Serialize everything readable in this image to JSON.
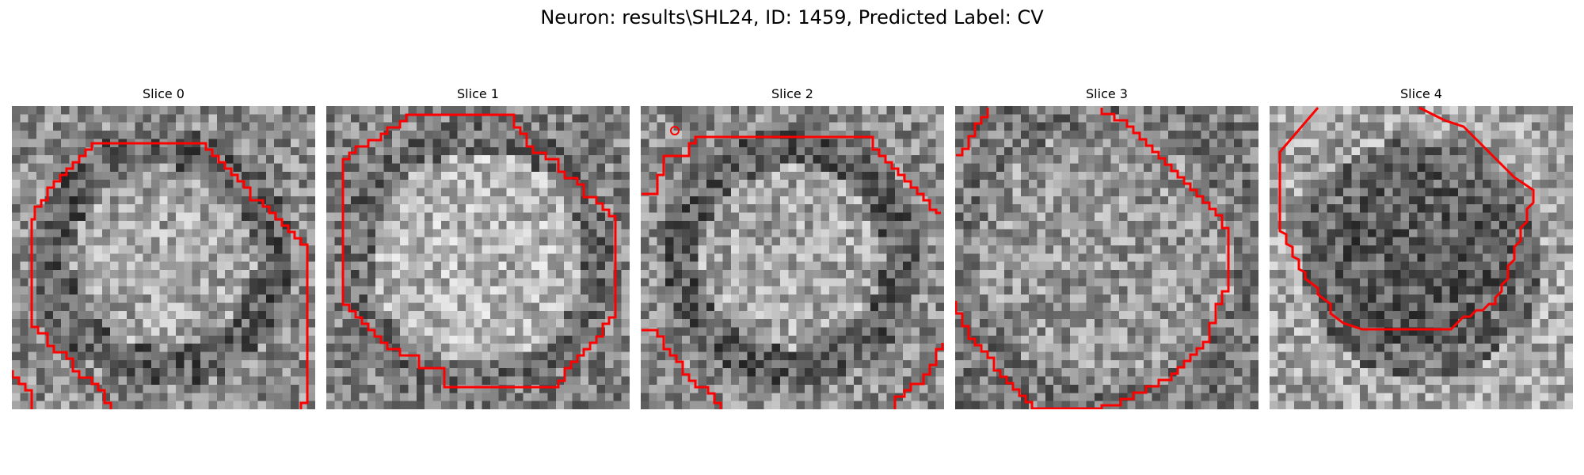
{
  "figure": {
    "title": "Neuron: results\\SHL24, ID: 1459, Predicted Label: CV"
  },
  "panels": [
    {
      "title": "Slice 0",
      "seed": 11,
      "texture": "ring-dark",
      "outline_color": "#ff0000"
    },
    {
      "title": "Slice 1",
      "seed": 23,
      "texture": "bright-center",
      "outline_color": "#ff0000"
    },
    {
      "title": "Slice 2",
      "seed": 37,
      "texture": "ring-dark",
      "outline_color": "#ff0000"
    },
    {
      "title": "Slice 3",
      "seed": 41,
      "texture": "flat",
      "outline_color": "#ff0000"
    },
    {
      "title": "Slice 4",
      "seed": 59,
      "texture": "dark-center",
      "outline_color": "#ff0000"
    }
  ]
}
